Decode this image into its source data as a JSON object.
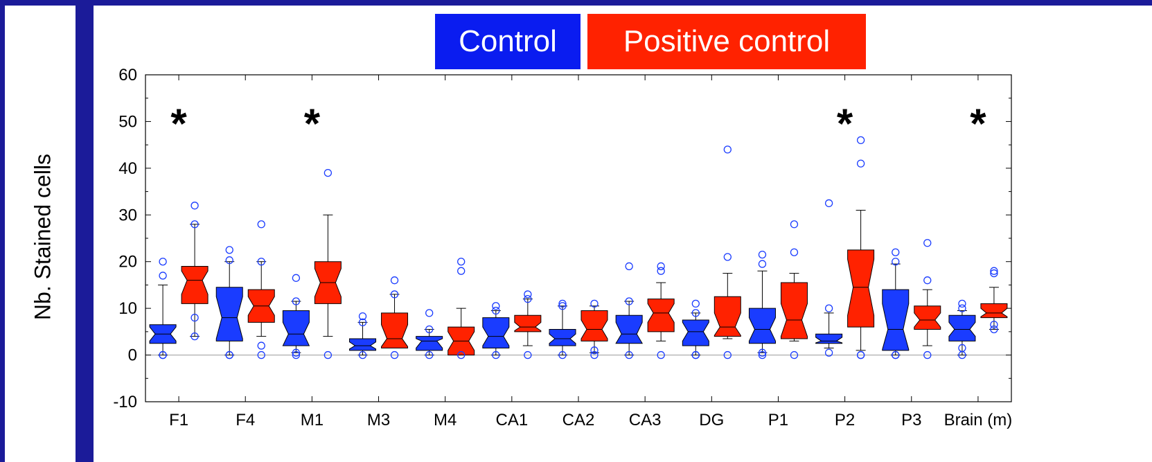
{
  "chart_data": {
    "type": "boxplot",
    "ylabel": "Nb. Stained cells",
    "ylim": [
      -10,
      60
    ],
    "yticks": [
      -10,
      0,
      10,
      20,
      30,
      40,
      50,
      60
    ],
    "categories": [
      "F1",
      "F4",
      "M1",
      "M3",
      "M4",
      "CA1",
      "CA2",
      "CA3",
      "DG",
      "P1",
      "P2",
      "P3",
      "Brain (m)"
    ],
    "significant": [
      true,
      false,
      true,
      false,
      false,
      false,
      false,
      false,
      false,
      false,
      true,
      false,
      true
    ],
    "significance_marker": "*",
    "legend": [
      {
        "label": "Control",
        "color": "#0a1cf0"
      },
      {
        "label": "Positive control",
        "color": "#ff2200"
      }
    ],
    "series": [
      {
        "name": "Control",
        "color": "#1a3cff",
        "boxes": [
          {
            "min": 0,
            "q1": 2.5,
            "median": 4.5,
            "q3": 6.5,
            "max": 15,
            "notch": [
              3,
              6
            ],
            "outliers": [
              0,
              0,
              17,
              20
            ]
          },
          {
            "min": 0,
            "q1": 3,
            "median": 8,
            "q3": 14.5,
            "max": 20,
            "notch": [
              3.5,
              12.5
            ],
            "outliers": [
              0,
              0,
              20.3,
              22.5
            ]
          },
          {
            "min": 0.5,
            "q1": 2,
            "median": 4.5,
            "q3": 9.5,
            "max": 11.5,
            "notch": [
              2,
              7
            ],
            "outliers": [
              0,
              0.5,
              11.5,
              16.5
            ]
          },
          {
            "min": 0,
            "q1": 1,
            "median": 2,
            "q3": 3.5,
            "max": 7,
            "notch": [
              1.3,
              2.8
            ],
            "outliers": [
              0,
              7,
              8.3
            ]
          },
          {
            "min": 0,
            "q1": 1,
            "median": 3,
            "q3": 4,
            "max": 5.5,
            "notch": [
              1.5,
              3.5
            ],
            "outliers": [
              0,
              5.5,
              9
            ]
          },
          {
            "min": 0,
            "q1": 1.5,
            "median": 4,
            "q3": 8,
            "max": 9.5,
            "notch": [
              2,
              6
            ],
            "outliers": [
              0,
              9.5,
              10.5
            ]
          },
          {
            "min": 0,
            "q1": 2,
            "median": 3.5,
            "q3": 5.5,
            "max": 10.5,
            "notch": [
              2.5,
              4.5
            ],
            "outliers": [
              0,
              10.5,
              11
            ]
          },
          {
            "min": 0,
            "q1": 2.5,
            "median": 4.5,
            "q3": 8.5,
            "max": 11.5,
            "notch": [
              2.5,
              7
            ],
            "outliers": [
              0,
              11.5,
              19
            ]
          },
          {
            "min": 0,
            "q1": 2,
            "median": 5,
            "q3": 7.5,
            "max": 9,
            "notch": [
              3,
              7
            ],
            "outliers": [
              0,
              0,
              9,
              11
            ]
          },
          {
            "min": 0.5,
            "q1": 2.5,
            "median": 5.5,
            "q3": 10,
            "max": 18,
            "notch": [
              3,
              8
            ],
            "outliers": [
              0,
              0.5,
              19.5,
              21.5
            ]
          },
          {
            "min": 1.5,
            "q1": 2.5,
            "median": 3,
            "q3": 4.5,
            "max": 9,
            "notch": [
              2.6,
              3.8
            ],
            "outliers": [
              0.5,
              10,
              32.5
            ]
          },
          {
            "min": 0,
            "q1": 1,
            "median": 5.5,
            "q3": 14,
            "max": 19.5,
            "notch": [
              1.2,
              11
            ],
            "outliers": [
              0,
              0,
              20,
              22
            ]
          },
          {
            "min": 0,
            "q1": 3,
            "median": 5.5,
            "q3": 8.5,
            "max": 9.5,
            "notch": [
              4,
              7
            ],
            "outliers": [
              0,
              1.5,
              10,
              11
            ]
          }
        ]
      },
      {
        "name": "Positive control",
        "color": "#ff2200",
        "boxes": [
          {
            "min": 4,
            "q1": 11,
            "median": 16,
            "q3": 19,
            "max": 28,
            "notch": [
              13,
              18
            ],
            "outliers": [
              4,
              8,
              28,
              32
            ]
          },
          {
            "min": 4,
            "q1": 7,
            "median": 10.5,
            "q3": 14,
            "max": 20,
            "notch": [
              8.5,
              12.5
            ],
            "outliers": [
              0,
              2,
              20,
              28
            ]
          },
          {
            "min": 4,
            "q1": 11,
            "median": 15.5,
            "q3": 20,
            "max": 30,
            "notch": [
              12.5,
              18.5
            ],
            "outliers": [
              0,
              39
            ]
          },
          {
            "min": 1.5,
            "q1": 1.5,
            "median": 3.5,
            "q3": 9,
            "max": 13,
            "notch": [
              1.8,
              6.5
            ],
            "outliers": [
              0,
              13,
              16
            ]
          },
          {
            "min": 0,
            "q1": 0,
            "median": 3,
            "q3": 6,
            "max": 10,
            "notch": [
              1,
              5
            ],
            "outliers": [
              0,
              18,
              20
            ]
          },
          {
            "min": 2,
            "q1": 5,
            "median": 6,
            "q3": 8.5,
            "max": 12,
            "notch": [
              5.2,
              7
            ],
            "outliers": [
              0,
              12,
              13
            ]
          },
          {
            "min": 0.5,
            "q1": 3,
            "median": 5.5,
            "q3": 9.5,
            "max": 10.5,
            "notch": [
              3.5,
              7.5
            ],
            "outliers": [
              0,
              1,
              11
            ]
          },
          {
            "min": 3,
            "q1": 5,
            "median": 9,
            "q3": 12,
            "max": 15.5,
            "notch": [
              7,
              11
            ],
            "outliers": [
              0,
              18,
              19
            ]
          },
          {
            "min": 3.5,
            "q1": 4,
            "median": 6,
            "q3": 12.5,
            "max": 17.5,
            "notch": [
              4.2,
              9
            ],
            "outliers": [
              0,
              21,
              44
            ]
          },
          {
            "min": 3,
            "q1": 3.5,
            "median": 7.5,
            "q3": 15.5,
            "max": 17.5,
            "notch": [
              4,
              11
            ],
            "outliers": [
              0,
              22,
              28
            ]
          },
          {
            "min": 1,
            "q1": 6,
            "median": 14.5,
            "q3": 22.5,
            "max": 31,
            "notch": [
              8.5,
              20.5
            ],
            "outliers": [
              0,
              0,
              41,
              46
            ]
          },
          {
            "min": 2,
            "q1": 5.5,
            "median": 7.5,
            "q3": 10.5,
            "max": 14,
            "notch": [
              6,
              9
            ],
            "outliers": [
              0,
              16,
              24
            ]
          },
          {
            "min": 5.5,
            "q1": 8,
            "median": 9,
            "q3": 11,
            "max": 14.5,
            "notch": [
              8.2,
              10
            ],
            "outliers": [
              5.5,
              6.5,
              17.5,
              18
            ]
          }
        ]
      }
    ]
  }
}
